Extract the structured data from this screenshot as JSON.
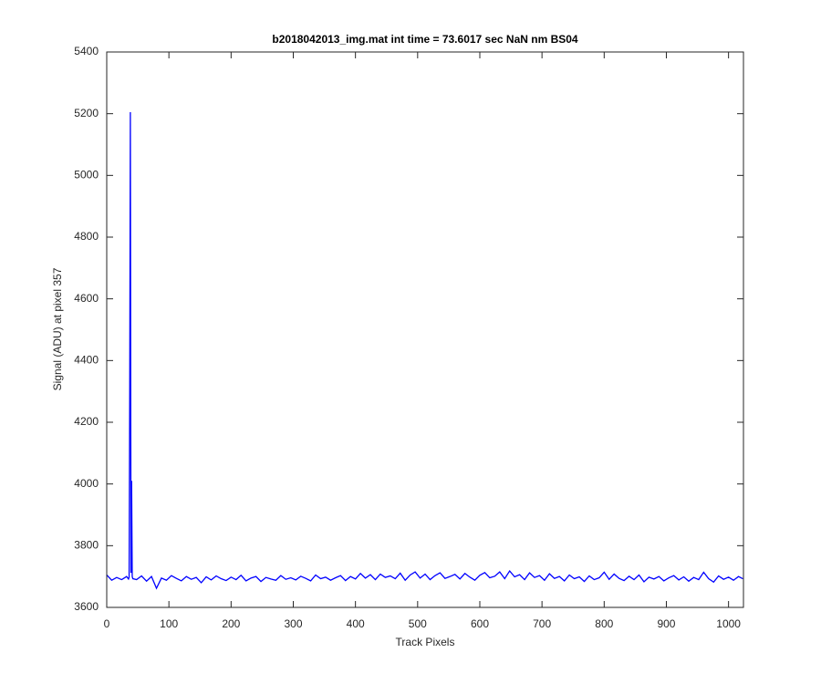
{
  "chart_data": {
    "type": "line",
    "title": "b2018042013_img.mat int time = 73.6017 sec  NaN nm BS04",
    "x_label": "Track Pixels",
    "y_label": "Signal (ADU) at pixel 357",
    "xlim": [
      0,
      1024
    ],
    "ylim": [
      3600,
      5400
    ],
    "xticks": [
      0,
      100,
      200,
      300,
      400,
      500,
      600,
      700,
      800,
      900,
      1000
    ],
    "yticks": [
      3600,
      3800,
      4000,
      4200,
      4400,
      4600,
      4800,
      5000,
      5200,
      5400
    ],
    "grid": false,
    "x": [
      0,
      8,
      16,
      24,
      32,
      35,
      36,
      37,
      38,
      39,
      40,
      41,
      42,
      48,
      56,
      64,
      72,
      80,
      88,
      96,
      104,
      112,
      120,
      128,
      136,
      144,
      152,
      160,
      168,
      176,
      184,
      192,
      200,
      208,
      216,
      224,
      232,
      240,
      248,
      256,
      264,
      272,
      280,
      288,
      296,
      304,
      312,
      320,
      328,
      336,
      344,
      352,
      360,
      368,
      376,
      384,
      392,
      400,
      408,
      416,
      424,
      432,
      440,
      448,
      456,
      464,
      472,
      480,
      488,
      496,
      504,
      512,
      520,
      528,
      536,
      544,
      552,
      560,
      568,
      576,
      584,
      592,
      600,
      608,
      616,
      624,
      632,
      640,
      648,
      656,
      664,
      672,
      680,
      688,
      696,
      704,
      712,
      720,
      728,
      736,
      744,
      752,
      760,
      768,
      776,
      784,
      792,
      800,
      808,
      816,
      824,
      832,
      840,
      848,
      856,
      864,
      872,
      880,
      888,
      896,
      904,
      912,
      920,
      928,
      936,
      944,
      952,
      960,
      968,
      976,
      984,
      992,
      1000,
      1008,
      1016,
      1023
    ],
    "series": [
      {
        "color": "#0000ff",
        "values": [
          3705,
          3688,
          3697,
          3690,
          3700,
          3692,
          3698,
          4300,
          5205,
          3712,
          4010,
          3700,
          3693,
          3690,
          3702,
          3685,
          3700,
          3662,
          3695,
          3688,
          3703,
          3694,
          3686,
          3700,
          3691,
          3697,
          3680,
          3699,
          3689,
          3702,
          3693,
          3687,
          3698,
          3690,
          3704,
          3686,
          3695,
          3700,
          3684,
          3697,
          3692,
          3688,
          3703,
          3691,
          3696,
          3689,
          3701,
          3694,
          3686,
          3705,
          3693,
          3698,
          3688,
          3696,
          3703,
          3687,
          3700,
          3692,
          3710,
          3695,
          3706,
          3690,
          3708,
          3697,
          3702,
          3693,
          3711,
          3688,
          3705,
          3715,
          3695,
          3708,
          3690,
          3703,
          3712,
          3694,
          3700,
          3707,
          3692,
          3710,
          3698,
          3688,
          3704,
          3713,
          3696,
          3701,
          3715,
          3693,
          3718,
          3699,
          3706,
          3690,
          3712,
          3697,
          3703,
          3688,
          3709,
          3694,
          3700,
          3686,
          3705,
          3693,
          3699,
          3684,
          3702,
          3690,
          3696,
          3714,
          3691,
          3708,
          3694,
          3687,
          3701,
          3690,
          3705,
          3683,
          3698,
          3692,
          3700,
          3686,
          3696,
          3703,
          3689,
          3699,
          3685,
          3697,
          3690,
          3714,
          3693,
          3682,
          3702,
          3691,
          3698,
          3688,
          3700,
          3693
        ]
      }
    ]
  }
}
